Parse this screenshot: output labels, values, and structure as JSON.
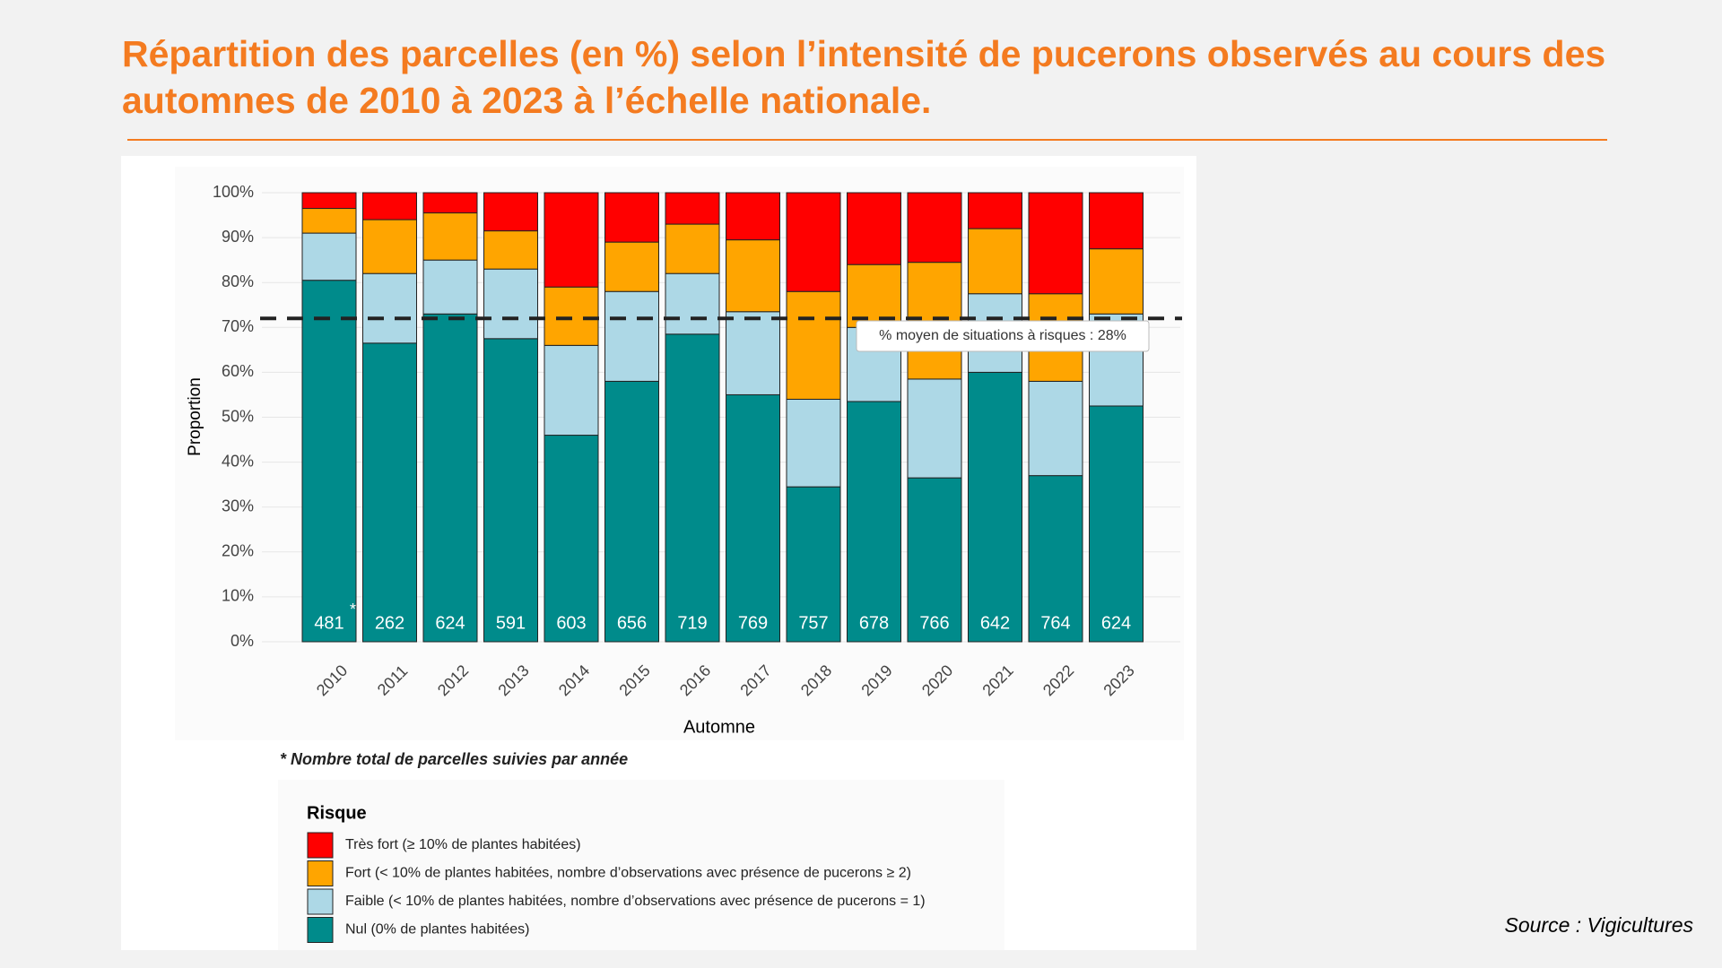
{
  "chart_data": {
    "type": "stacked_bar",
    "title": "Répartition des parcelles (en %) selon l’intensité de pucerons observés au cours des automnes de 2010 à 2023 à l’échelle nationale.",
    "y_label": "Proportion",
    "x_label": "Automne",
    "categories": [
      "2010",
      "2011",
      "2012",
      "2013",
      "2014",
      "2015",
      "2016",
      "2017",
      "2018",
      "2019",
      "2020",
      "2021",
      "2022",
      "2023"
    ],
    "series": [
      {
        "name": "Nul (0% de plantes habitées)",
        "color": "#008b8b",
        "values": [
          80.5,
          66.5,
          73,
          67.5,
          46,
          58,
          68.5,
          55,
          34.5,
          53.5,
          36.5,
          60,
          37,
          52.5
        ]
      },
      {
        "name": "Faible (< 10% de plantes habitées, nombre d’observations avec présence de pucerons = 1)",
        "color": "#add8e6",
        "values": [
          10.5,
          15.5,
          12,
          15.5,
          20,
          20,
          13.5,
          18.5,
          19.5,
          16.5,
          22,
          17.5,
          21,
          20.5
        ]
      },
      {
        "name": "Fort (< 10% de plantes habitées, nombre d’observations avec présence de pucerons ≥ 2)",
        "color": "#ffa500",
        "values": [
          5.5,
          12,
          10.5,
          8.5,
          13,
          11,
          11,
          16,
          24,
          14,
          26,
          14.5,
          19.5,
          14.5
        ]
      },
      {
        "name": "Très fort (≥ 10% de plantes habitées)",
        "color": "#ff0000",
        "values": [
          3.5,
          6,
          4.5,
          8.5,
          21,
          11,
          7,
          10.5,
          22,
          16,
          15.5,
          8,
          22.5,
          12.5
        ]
      }
    ],
    "counts": [
      481,
      262,
      624,
      591,
      603,
      656,
      719,
      769,
      757,
      678,
      766,
      642,
      764,
      624
    ],
    "count_note": "*",
    "footnote": "* Nombre total de parcelles suivies par année",
    "reference_line": 72,
    "reference_label": "% moyen de situations à risques :  28%",
    "legend_title": "Risque",
    "ylim": [
      0,
      100
    ],
    "yticks": [
      {
        "value": 0,
        "label": "0%"
      },
      {
        "value": 10,
        "label": "10%"
      },
      {
        "value": 20,
        "label": "20%"
      },
      {
        "value": 30,
        "label": "30%"
      },
      {
        "value": 40,
        "label": "40%"
      },
      {
        "value": 50,
        "label": "50%"
      },
      {
        "value": 60,
        "label": "60%"
      },
      {
        "value": 70,
        "label": "70%"
      },
      {
        "value": 80,
        "label": "80%"
      },
      {
        "value": 90,
        "label": "90%"
      },
      {
        "value": 100,
        "label": "100%"
      }
    ],
    "grid": true,
    "source": "Source : Vigicultures"
  }
}
